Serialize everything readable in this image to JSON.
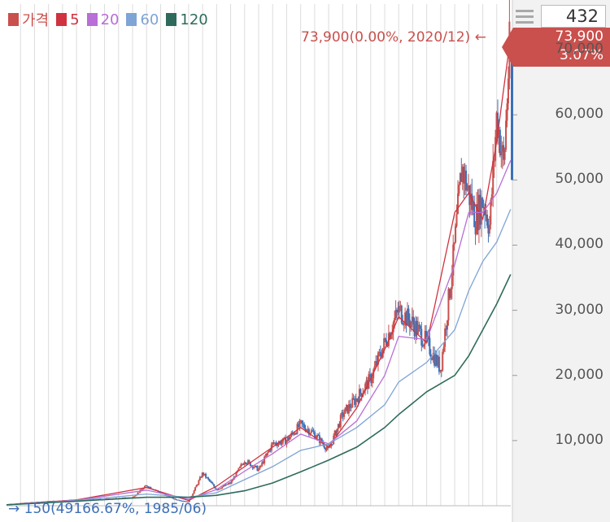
{
  "legend": [
    {
      "label": "가격",
      "color": "#c9504d"
    },
    {
      "label": "5",
      "color": "#d0323f"
    },
    {
      "label": "20",
      "color": "#b86fd6"
    },
    {
      "label": "60",
      "color": "#7fa4d6"
    },
    {
      "label": "120",
      "color": "#2e6b5c"
    }
  ],
  "count": "432",
  "price_badge": {
    "price": "73,900",
    "change": "3.07%"
  },
  "high_label": "73,900(0.00%, 2020/12) ←",
  "low_label": "→ 150(49166.67%, 1985/06)",
  "colors": {
    "up": "#c9504d",
    "down": "#3c6fb6",
    "ma5": "#d0323f",
    "ma20": "#b86fd6",
    "ma60": "#7fa4d6",
    "ma120": "#2e6b5c",
    "grid": "#dcdcdc",
    "axis_bg": "#f2f2f2"
  },
  "chart_data": {
    "type": "line",
    "title": "",
    "xlabel": "",
    "ylabel": "",
    "x_range": [
      "1985/01",
      "2020/12"
    ],
    "ylim": [
      0,
      77000
    ],
    "y_ticks": [
      10000,
      20000,
      30000,
      40000,
      50000,
      60000,
      70000
    ],
    "y_tick_labels": [
      "10,000",
      "20,000",
      "30,000",
      "40,000",
      "50,000",
      "60,000",
      "70,000"
    ],
    "grid": true,
    "legend_position": "top-left",
    "series": [
      {
        "name": "가격",
        "x": [
          1985,
          1986,
          1988,
          1990,
          1992,
          1994,
          1995,
          1996,
          1997,
          1998,
          1999,
          2000,
          2001,
          2002,
          2003,
          2004,
          2005,
          2006,
          2007,
          2008,
          2009,
          2010,
          2011,
          2012,
          2013,
          2014,
          2015,
          2016,
          2017,
          2017.5,
          2018,
          2018.5,
          2019,
          2019.5,
          2020,
          2020.5,
          2020.99
        ],
        "values": [
          150,
          400,
          700,
          900,
          1000,
          1300,
          3100,
          2000,
          1000,
          600,
          5000,
          2500,
          3500,
          7000,
          5500,
          9500,
          10000,
          12500,
          11000,
          8500,
          14000,
          16500,
          19500,
          25000,
          30000,
          28000,
          25000,
          21000,
          40000,
          52000,
          48000,
          44000,
          47000,
          43000,
          60000,
          52000,
          73900
        ]
      },
      {
        "name": "5",
        "x": [
          1985,
          1990,
          1995,
          1998,
          2000,
          2002,
          2004,
          2006,
          2008,
          2010,
          2012,
          2013,
          2015,
          2017,
          2018,
          2019,
          2020,
          2020.99
        ],
        "values": [
          150,
          900,
          2800,
          800,
          3000,
          6000,
          9000,
          12000,
          9000,
          15000,
          24000,
          29000,
          25000,
          45000,
          48000,
          44000,
          56000,
          72000
        ]
      },
      {
        "name": "20",
        "x": [
          1985,
          1990,
          1995,
          1998,
          2000,
          2002,
          2004,
          2006,
          2008,
          2010,
          2012,
          2013,
          2015,
          2017,
          2018,
          2019,
          2020,
          2020.99
        ],
        "values": [
          150,
          850,
          2400,
          1000,
          2500,
          5300,
          8000,
          11000,
          9500,
          13000,
          20000,
          26000,
          25500,
          37000,
          45000,
          45000,
          48000,
          53000
        ]
      },
      {
        "name": "60",
        "x": [
          1985,
          1990,
          1995,
          1998,
          2000,
          2002,
          2004,
          2006,
          2008,
          2010,
          2012,
          2013,
          2015,
          2017,
          2018,
          2019,
          2020,
          2020.99
        ],
        "values": [
          150,
          800,
          1800,
          1300,
          2000,
          4000,
          6000,
          8500,
          9500,
          12000,
          15500,
          19000,
          22000,
          27000,
          33000,
          37500,
          40500,
          45500
        ]
      },
      {
        "name": "120",
        "x": [
          1985,
          1990,
          1995,
          1998,
          2000,
          2002,
          2004,
          2006,
          2008,
          2010,
          2012,
          2013,
          2015,
          2017,
          2018,
          2019,
          2020,
          2020.99
        ],
        "values": [
          150,
          700,
          1300,
          1300,
          1600,
          2300,
          3500,
          5200,
          7000,
          9000,
          12000,
          14000,
          17500,
          20000,
          23000,
          27000,
          31000,
          35500
        ]
      }
    ]
  }
}
